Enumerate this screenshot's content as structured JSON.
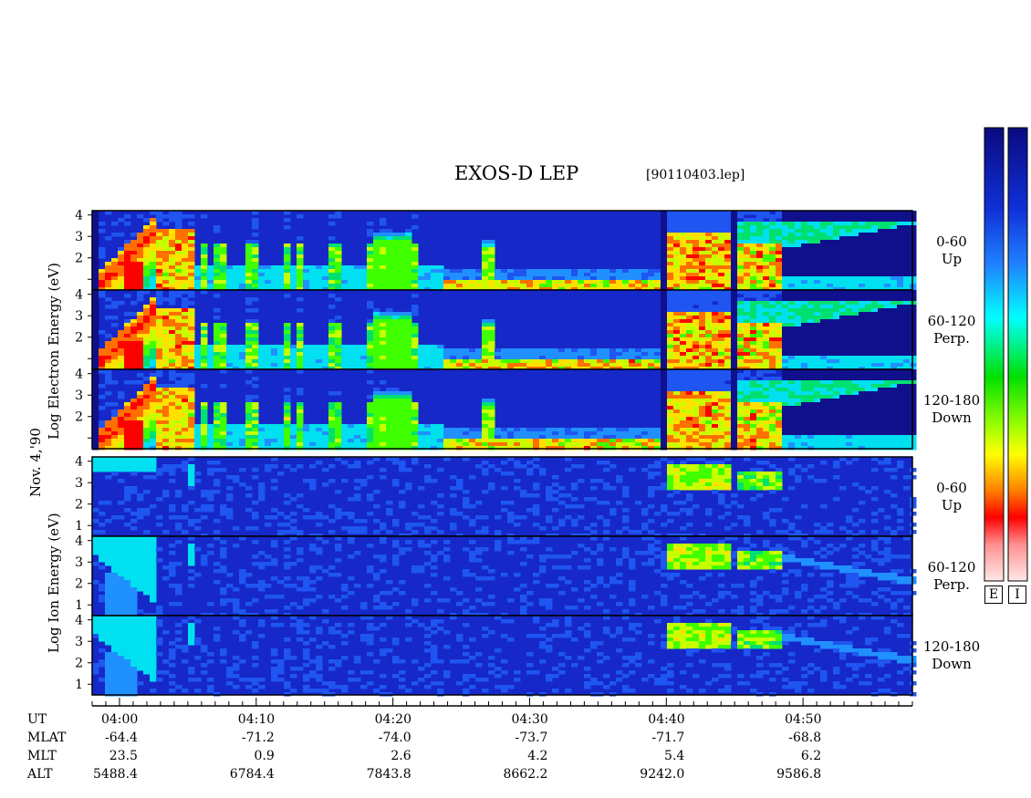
{
  "header": {
    "title": "EXOS-D LEP",
    "file": "[90110403.lep]"
  },
  "left_labels": {
    "electron_group": "Log Electron Energy (eV)",
    "ion_group": "Log Ion Energy (eV)",
    "date": "Nov. 4,'90"
  },
  "panels": [
    {
      "species": "electron",
      "line1": "0-60",
      "line2": "Up"
    },
    {
      "species": "electron",
      "line1": "60-120",
      "line2": "Perp."
    },
    {
      "species": "electron",
      "line1": "120-180",
      "line2": "Down"
    },
    {
      "species": "ion",
      "line1": "0-60",
      "line2": "Up"
    },
    {
      "species": "ion",
      "line1": "60-120",
      "line2": "Perp."
    },
    {
      "species": "ion",
      "line1": "120-180",
      "line2": "Down"
    }
  ],
  "colorbars": {
    "labels": [
      "E",
      "I"
    ]
  },
  "chart_data": {
    "type": "heatmap",
    "y_ticks": [
      "1",
      "2",
      "3",
      "4"
    ],
    "ylim": [
      0.5,
      4.2
    ],
    "x_ticks": [
      "04:00",
      "04:10",
      "04:20",
      "04:30",
      "04:40",
      "04:50"
    ],
    "x_minutes": [
      0,
      10,
      20,
      30,
      40,
      50
    ],
    "xlim_minutes": [
      -2,
      58
    ],
    "orbit_table": {
      "rows": [
        {
          "label": "UT",
          "values": [
            "04:00",
            "04:10",
            "04:20",
            "04:30",
            "04:40",
            "04:50"
          ]
        },
        {
          "label": "MLAT",
          "values": [
            "-64.4",
            "-71.2",
            "-74.0",
            "-73.7",
            "-71.7",
            "-68.8"
          ]
        },
        {
          "label": "MLT",
          "values": [
            "23.5",
            "0.9",
            "2.6",
            "4.2",
            "5.4",
            "6.2"
          ]
        },
        {
          "label": "ALT",
          "values": [
            "5488.4",
            "6784.4",
            "7843.8",
            "8662.2",
            "9242.0",
            "9586.8"
          ]
        }
      ]
    }
  }
}
